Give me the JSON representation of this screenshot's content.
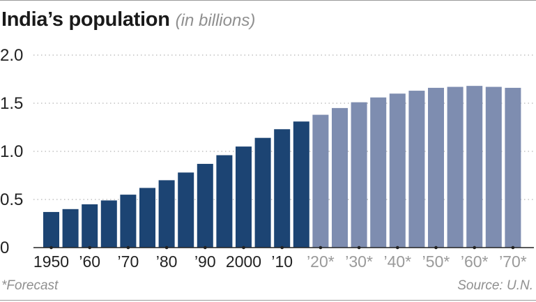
{
  "header": {
    "title": "India’s population",
    "subtitle": "(in billions)"
  },
  "footer": {
    "footnote": "*Forecast",
    "source": "Source: U.N."
  },
  "colors": {
    "historical": "#1c4473",
    "forecast": "#7e8db0",
    "grid": "#b5b5b5",
    "axis": "#222222",
    "forecast_label": "#9a9a9a"
  },
  "chart_data": {
    "type": "bar",
    "title": "India’s population",
    "subtitle": "(in billions)",
    "xlabel": "",
    "ylabel": "",
    "ylim": [
      0,
      2.0
    ],
    "yticks": [
      {
        "value": 0,
        "label": "0"
      },
      {
        "value": 0.5,
        "label": "0.5"
      },
      {
        "value": 1.0,
        "label": "1.0"
      },
      {
        "value": 1.5,
        "label": "1.5"
      },
      {
        "value": 2.0,
        "label": "2.0"
      }
    ],
    "grid": true,
    "categories": [
      "1950",
      "1955",
      "1960",
      "1965",
      "1970",
      "1975",
      "1980",
      "1985",
      "1990",
      "1995",
      "2000",
      "2005",
      "2010",
      "2015",
      "2020",
      "2025",
      "2030",
      "2035",
      "2040",
      "2045",
      "2050",
      "2055",
      "2060",
      "2065",
      "2070"
    ],
    "values": [
      0.37,
      0.4,
      0.45,
      0.49,
      0.55,
      0.62,
      0.7,
      0.78,
      0.87,
      0.96,
      1.05,
      1.14,
      1.23,
      1.31,
      1.38,
      1.45,
      1.51,
      1.56,
      1.6,
      1.63,
      1.66,
      1.67,
      1.68,
      1.67,
      1.66
    ],
    "forecast_from": "2020",
    "xtick_labels": [
      {
        "category": "1950",
        "label": "1950",
        "forecast": false
      },
      {
        "category": "1960",
        "label": "’60",
        "forecast": false
      },
      {
        "category": "1970",
        "label": "’70",
        "forecast": false
      },
      {
        "category": "1980",
        "label": "’80",
        "forecast": false
      },
      {
        "category": "1990",
        "label": "’90",
        "forecast": false
      },
      {
        "category": "2000",
        "label": "2000",
        "forecast": false
      },
      {
        "category": "2010",
        "label": "’10",
        "forecast": false
      },
      {
        "category": "2020",
        "label": "’20*",
        "forecast": true
      },
      {
        "category": "2030",
        "label": "’30*",
        "forecast": true
      },
      {
        "category": "2040",
        "label": "’40*",
        "forecast": true
      },
      {
        "category": "2050",
        "label": "’50*",
        "forecast": true
      },
      {
        "category": "2060",
        "label": "’60*",
        "forecast": true
      },
      {
        "category": "2070",
        "label": "’70*",
        "forecast": true
      }
    ]
  }
}
